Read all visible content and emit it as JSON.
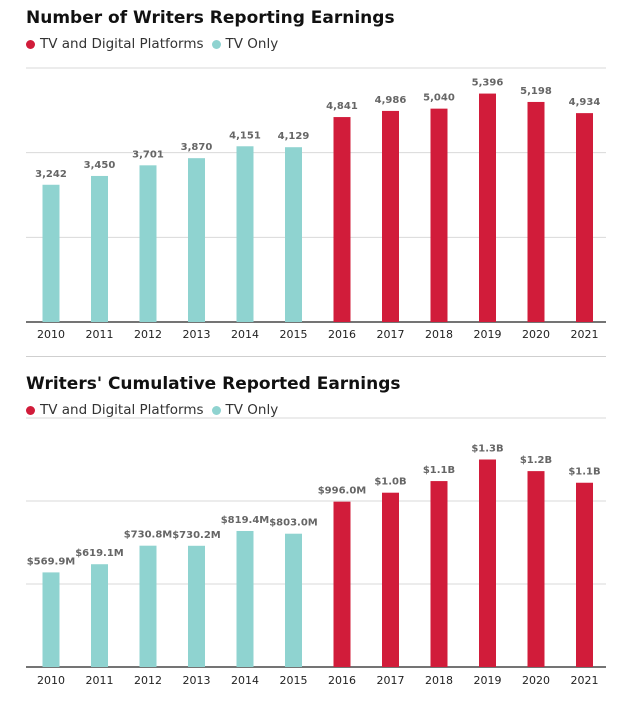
{
  "colors": {
    "tv_and_digital": "#D11C3A",
    "tv_only": "#8FD3D0",
    "grid": "#d9d9d9",
    "axis": "#222222"
  },
  "legend": {
    "tv_and_digital": "TV and Digital Platforms",
    "tv_only": "TV Only"
  },
  "chart_data": [
    {
      "type": "bar",
      "title": "Number of Writers Reporting Earnings",
      "categories": [
        "2010",
        "2011",
        "2012",
        "2013",
        "2014",
        "2015",
        "2016",
        "2017",
        "2018",
        "2019",
        "2020",
        "2021"
      ],
      "values": [
        3242,
        3450,
        3701,
        3870,
        4151,
        4129,
        4841,
        4986,
        5040,
        5396,
        5198,
        4934
      ],
      "data_labels": [
        "3,242",
        "3,450",
        "3,701",
        "3,870",
        "4,151",
        "4,129",
        "4,841",
        "4,986",
        "5,040",
        "5,396",
        "5,198",
        "4,934"
      ],
      "series_by_bar": [
        "tv_only",
        "tv_only",
        "tv_only",
        "tv_only",
        "tv_only",
        "tv_only",
        "tv_and_digital",
        "tv_and_digital",
        "tv_and_digital",
        "tv_and_digital",
        "tv_and_digital",
        "tv_and_digital"
      ],
      "ylim": [
        0,
        6000
      ],
      "grid_values": [
        2000,
        4000,
        6000
      ],
      "grid": true,
      "legend_position": "top-left"
    },
    {
      "type": "bar",
      "title": "Writers' Cumulative Reported Earnings",
      "categories": [
        "2010",
        "2011",
        "2012",
        "2013",
        "2014",
        "2015",
        "2016",
        "2017",
        "2018",
        "2019",
        "2020",
        "2021"
      ],
      "values": [
        569.9,
        619.1,
        730.8,
        730.2,
        819.4,
        803.0,
        996.0,
        1050,
        1120,
        1250,
        1180,
        1110
      ],
      "data_labels": [
        "$569.9M",
        "$619.1M",
        "$730.8M",
        "$730.2M",
        "$819.4M",
        "$803.0M",
        "$996.0M",
        "$1.0B",
        "$1.1B",
        "$1.3B",
        "$1.2B",
        "$1.1B"
      ],
      "series_by_bar": [
        "tv_only",
        "tv_only",
        "tv_only",
        "tv_only",
        "tv_only",
        "tv_only",
        "tv_and_digital",
        "tv_and_digital",
        "tv_and_digital",
        "tv_and_digital",
        "tv_and_digital",
        "tv_and_digital"
      ],
      "ylim": [
        0,
        1500
      ],
      "grid_values": [
        500,
        1000,
        1500
      ],
      "grid": true,
      "legend_position": "top-left"
    }
  ]
}
